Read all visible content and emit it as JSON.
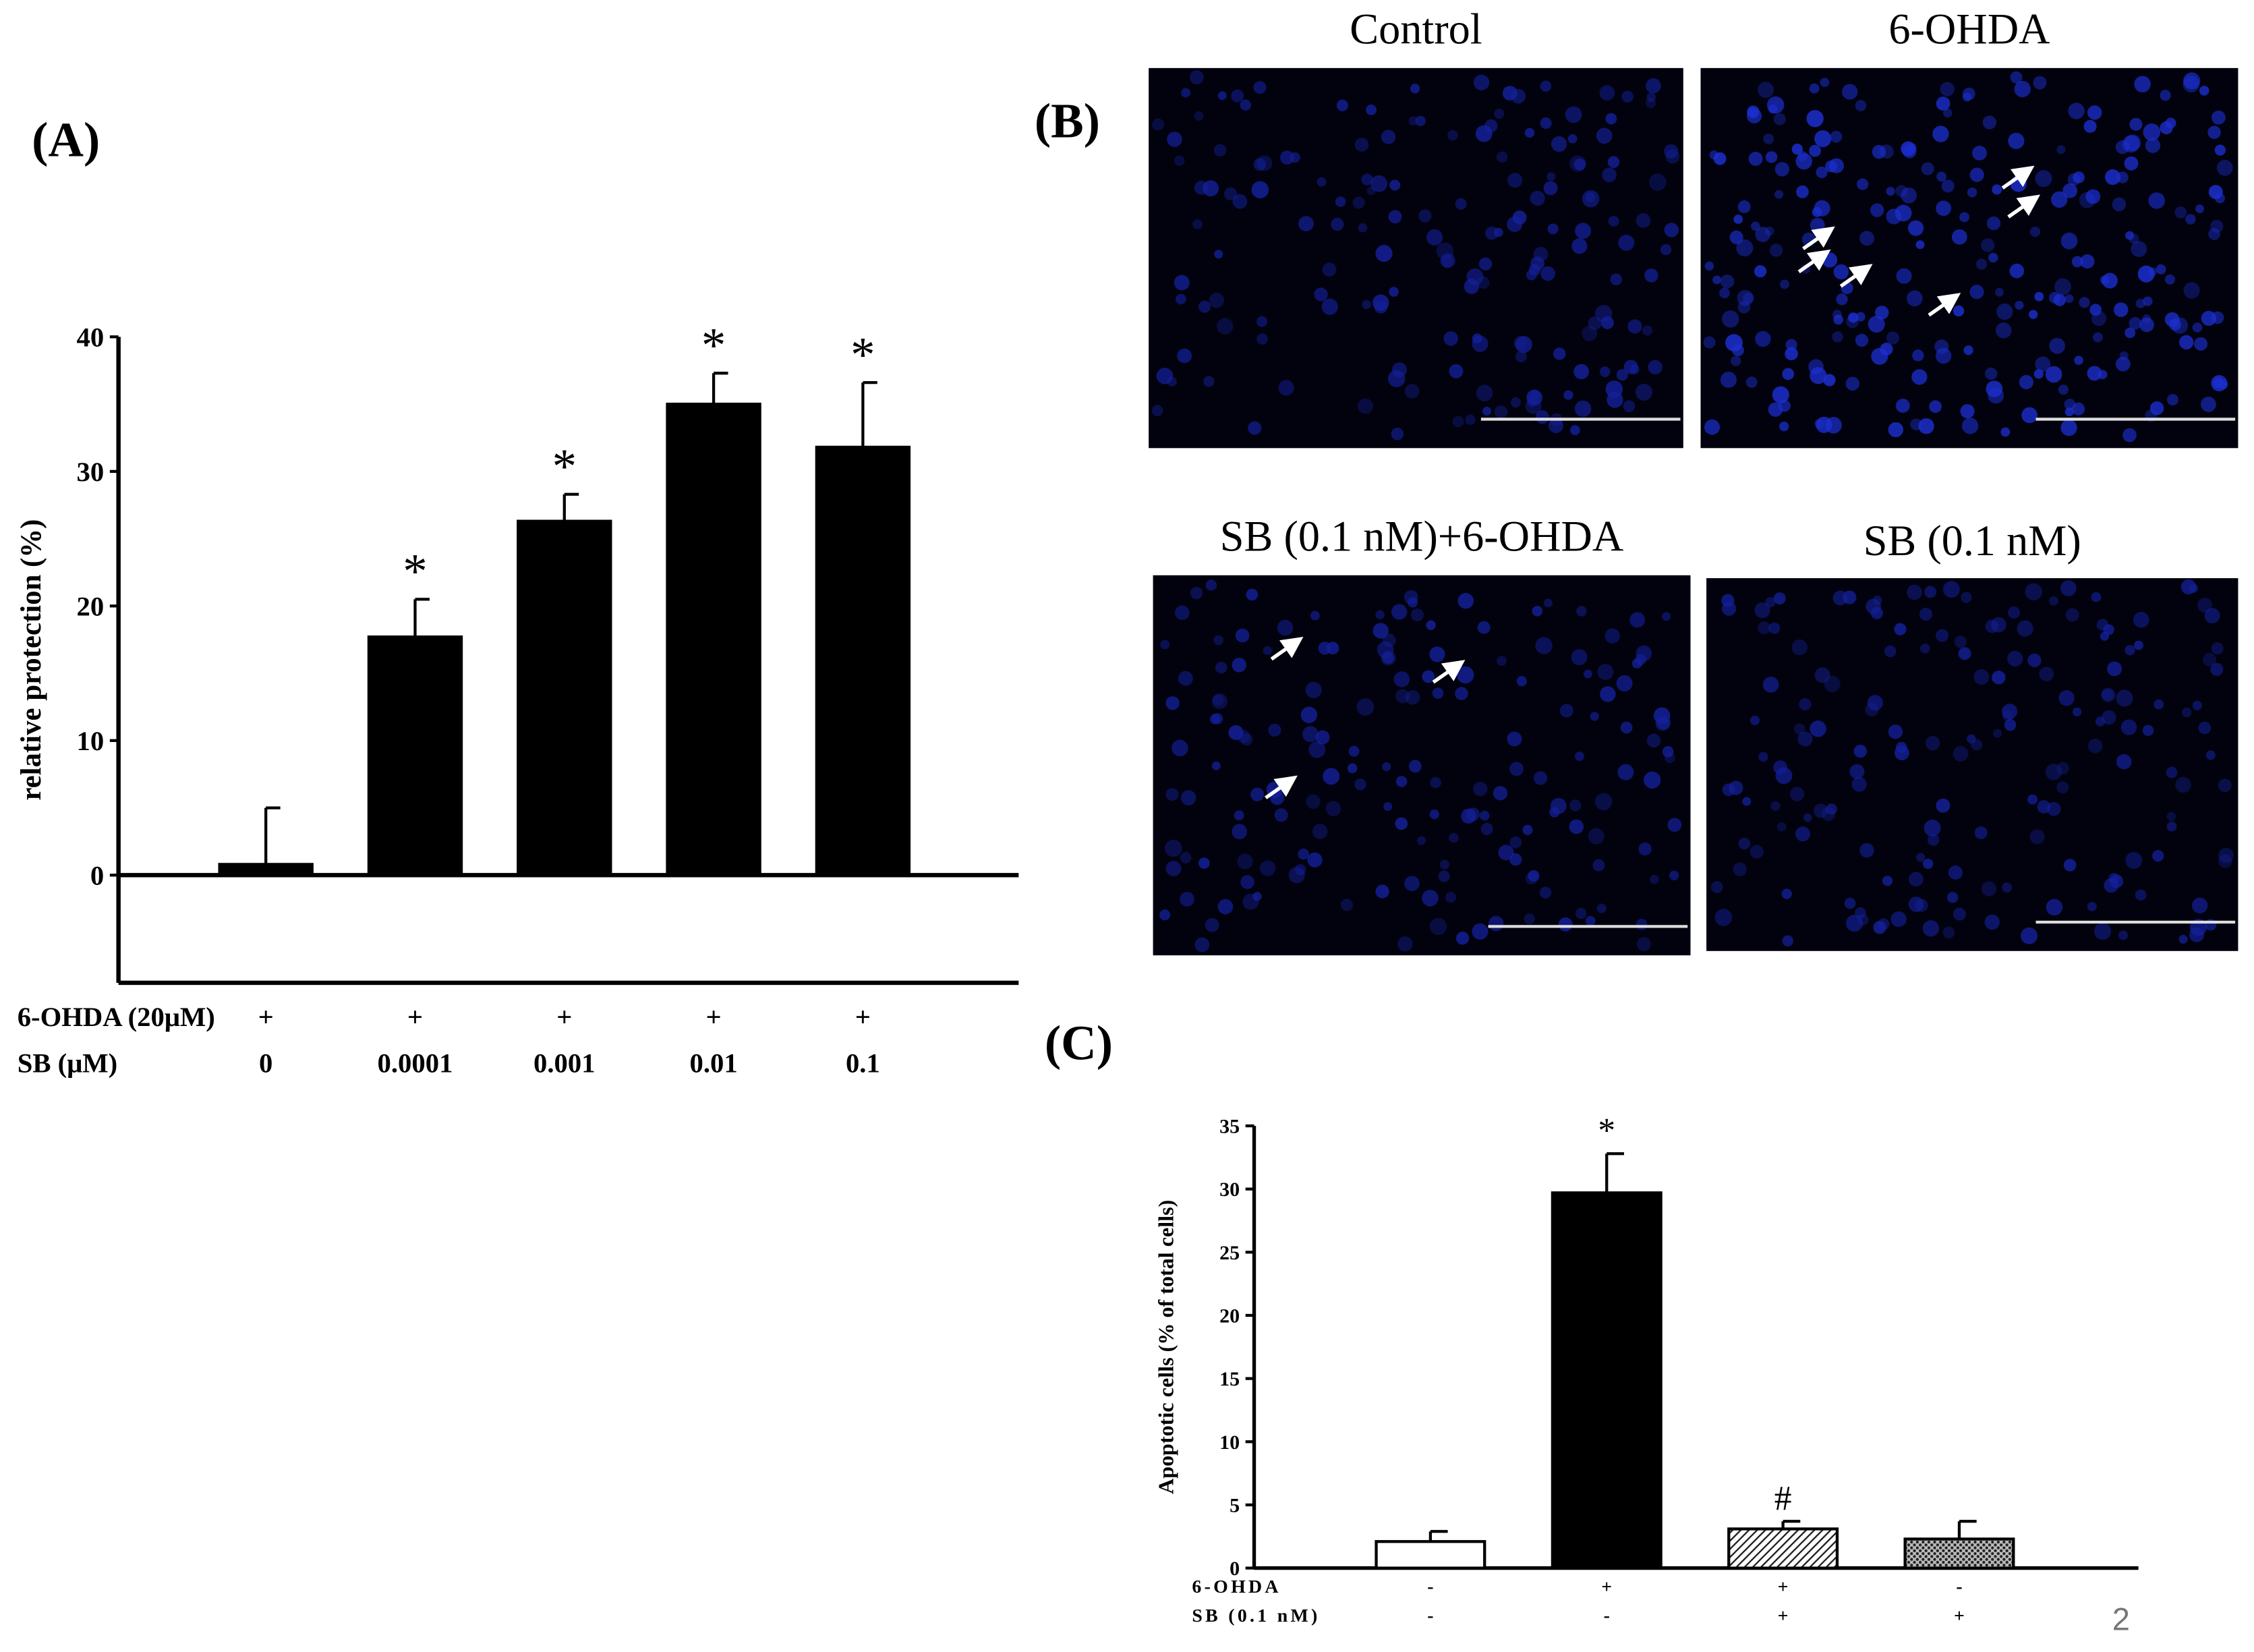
{
  "chart_data": [
    {
      "type": "bar",
      "panel": "(A)",
      "ylabel": "relative protection (%)",
      "row_labels": [
        "6-OHDA (20μM)",
        "SB (μM)"
      ],
      "rows": [
        [
          "+",
          "+",
          "+",
          "+",
          "+"
        ],
        [
          "0",
          "0.0001",
          "0.001",
          "0.01",
          "0.1"
        ]
      ],
      "values": [
        0.8,
        17.7,
        26.3,
        35.0,
        31.8
      ],
      "errors": [
        4.2,
        2.8,
        2.0,
        2.3,
        4.8
      ],
      "significance": [
        null,
        "*",
        "*",
        "*",
        "*"
      ],
      "colors": [
        "#000000",
        "#000000",
        "#000000",
        "#000000",
        "#000000"
      ],
      "patterns": [
        null,
        null,
        null,
        null,
        null
      ],
      "ylim": [
        -8,
        40
      ],
      "yticks": [
        0,
        10,
        20,
        30,
        40
      ]
    },
    {
      "type": "bar",
      "panel": "(C)",
      "ylabel": "Apoptotic cells (% of total cells)",
      "row_labels": [
        "6-OHDA",
        "SB (0.1 nM)"
      ],
      "rows": [
        [
          "-",
          "+",
          "+",
          "-"
        ],
        [
          "-",
          "-",
          "+",
          "+"
        ]
      ],
      "values": [
        2.1,
        29.7,
        3.1,
        2.3
      ],
      "errors": [
        0.8,
        3.1,
        0.6,
        1.4
      ],
      "significance": [
        null,
        "*",
        "#",
        null
      ],
      "colors": [
        "#ffffff",
        "#000000",
        "#ffffff",
        "#ffffff"
      ],
      "patterns": [
        null,
        null,
        "hatch",
        "dots"
      ],
      "ylim": [
        0,
        35
      ],
      "yticks": [
        0,
        5,
        10,
        15,
        20,
        25,
        30,
        35
      ]
    }
  ],
  "panel_b": {
    "label": "(B)",
    "titles": [
      "Control",
      "6-OHDA",
      "SB (0.1 nM)+6-OHDA",
      "SB (0.1 nM)"
    ]
  },
  "page_number": "2"
}
